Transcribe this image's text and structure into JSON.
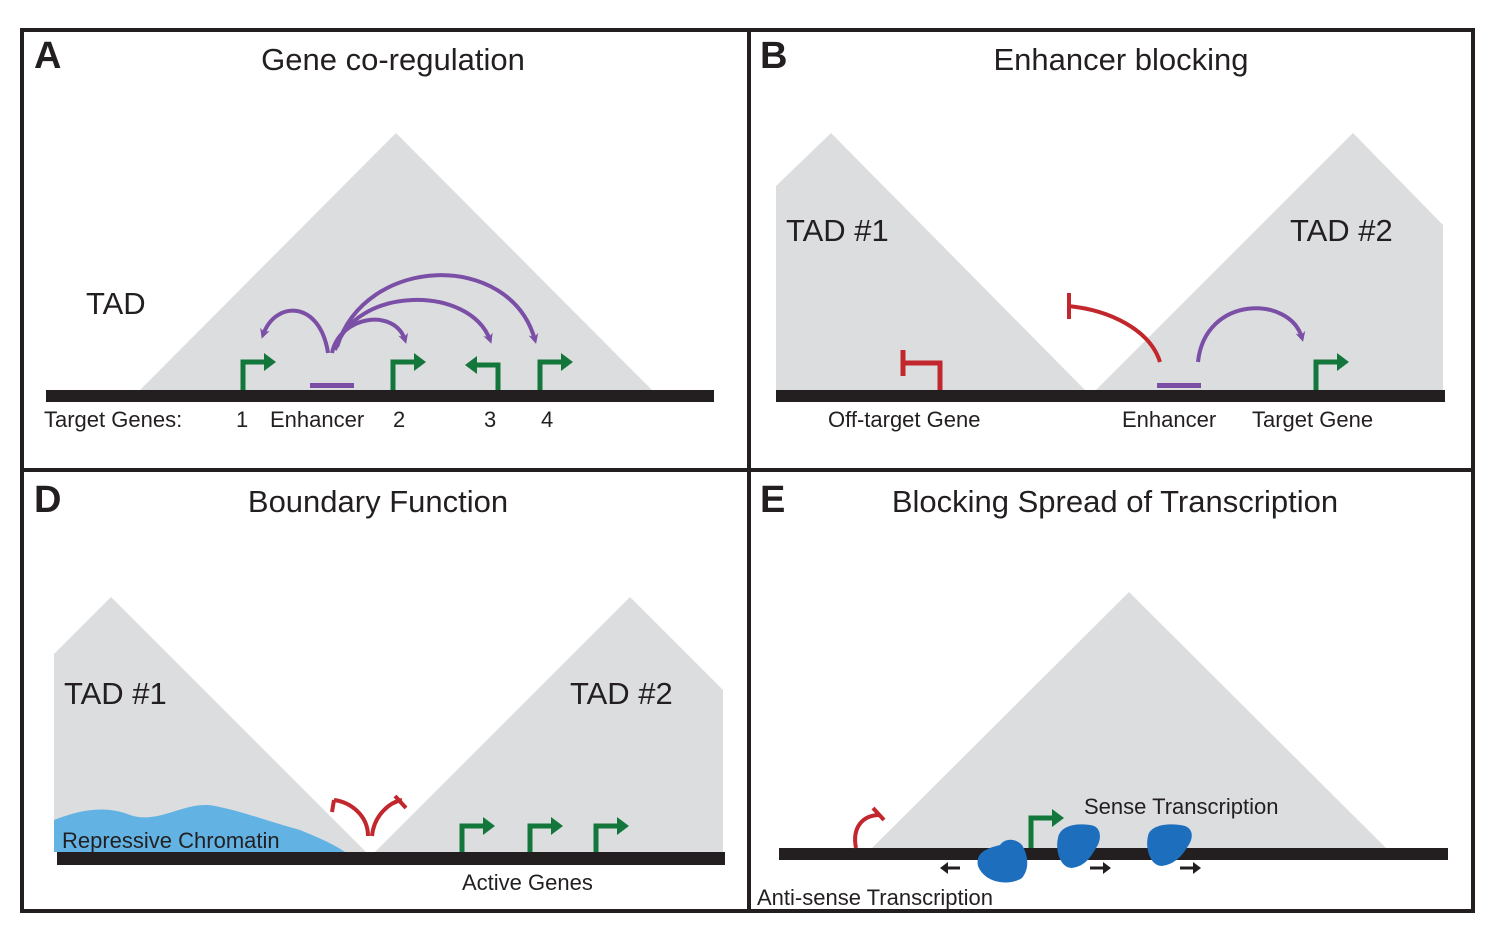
{
  "colors": {
    "frame": "#231f20",
    "tad_fill": "#dcdddf",
    "chromosome": "#231f20",
    "promoter_green": "#13763b",
    "enhancer_purple": "#7b4fa6",
    "insulator_red": "#c1272d",
    "repressive_blue": "#62b3e4",
    "polymerase_blue": "#1d6fbe"
  },
  "icons": [
    "promoter-arrow-icon",
    "enhancer-loop-arrow-icon",
    "insulator-block-icon",
    "polymerase-icon"
  ],
  "panels": {
    "A": {
      "letter": "A",
      "title": "Gene co-regulation",
      "tad_label": "TAD",
      "target_genes_label": "Target Genes:",
      "gene_1": "1",
      "enhancer_label": "Enhancer",
      "gene_2": "2",
      "gene_3": "3",
      "gene_4": "4"
    },
    "B": {
      "letter": "B",
      "title": "Enhancer blocking",
      "tad1_label": "TAD #1",
      "tad2_label": "TAD #2",
      "offtarget_label": "Off-target Gene",
      "enhancer_label": "Enhancer",
      "target_label": "Target Gene"
    },
    "D": {
      "letter": "D",
      "title": "Boundary Function",
      "tad1_label": "TAD #1",
      "tad2_label": "TAD #2",
      "repressive_label": "Repressive Chromatin",
      "active_label": "Active Genes"
    },
    "E": {
      "letter": "E",
      "title": "Blocking Spread of Transcription",
      "sense_label": "Sense Transcription",
      "antisense_label": "Anti-sense Transcription"
    }
  }
}
